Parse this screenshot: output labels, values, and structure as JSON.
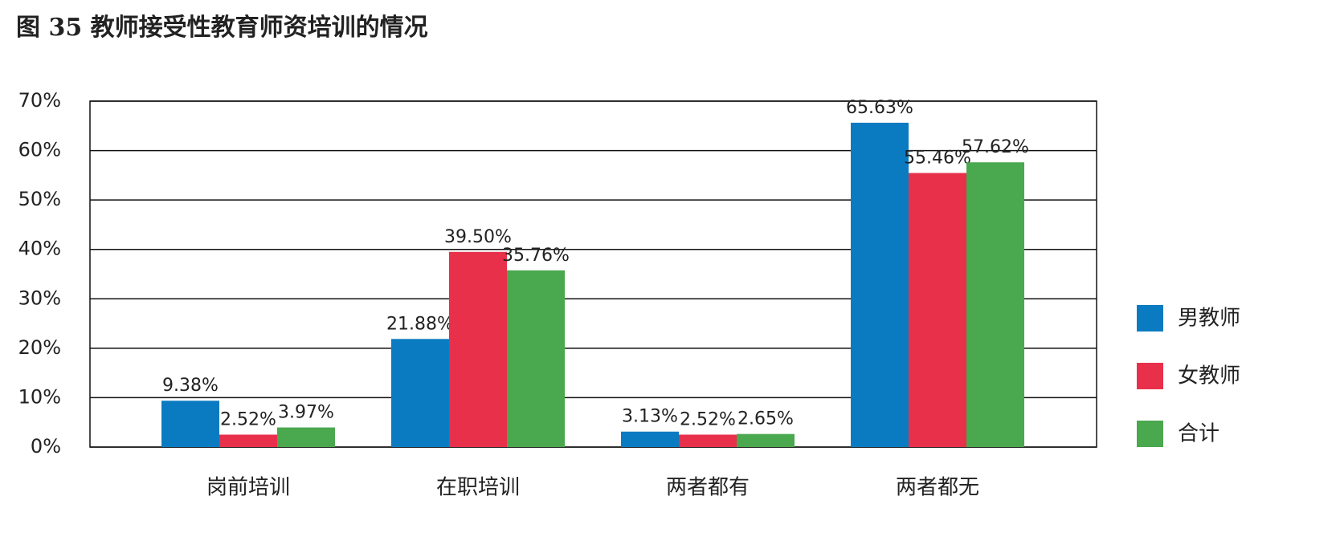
{
  "chart_data": {
    "type": "bar",
    "title": "图 35 教师接受性教育师资培训的情况",
    "categories": [
      "岗前培训",
      "在职培训",
      "两者都有",
      "两者都无"
    ],
    "series": [
      {
        "name": "男教师",
        "color": "#0a7bc1",
        "values": [
          9.38,
          21.88,
          3.13,
          65.63
        ],
        "value_labels": [
          "9.38%",
          "21.88%",
          "3.13%",
          "65.63%"
        ]
      },
      {
        "name": "女教师",
        "color": "#e8304a",
        "values": [
          2.52,
          39.5,
          2.52,
          55.46
        ],
        "value_labels": [
          "2.52%",
          "39.50%",
          "2.52%",
          "55.46%"
        ]
      },
      {
        "name": "合计",
        "color": "#4aa84e",
        "values": [
          3.97,
          35.76,
          2.65,
          57.62
        ],
        "value_labels": [
          "3.97%",
          "35.76%",
          "2.65%",
          "57.62%"
        ]
      }
    ],
    "ylim": [
      0,
      70
    ],
    "yticks": [
      {
        "value": 0,
        "label": "0%"
      },
      {
        "value": 10,
        "label": "10%"
      },
      {
        "value": 20,
        "label": "20%"
      },
      {
        "value": 30,
        "label": "30%"
      },
      {
        "value": 40,
        "label": "40%"
      },
      {
        "value": 50,
        "label": "50%"
      },
      {
        "value": 60,
        "label": "60%"
      },
      {
        "value": 70,
        "label": "70%"
      }
    ],
    "grid": true,
    "legend": "right"
  }
}
